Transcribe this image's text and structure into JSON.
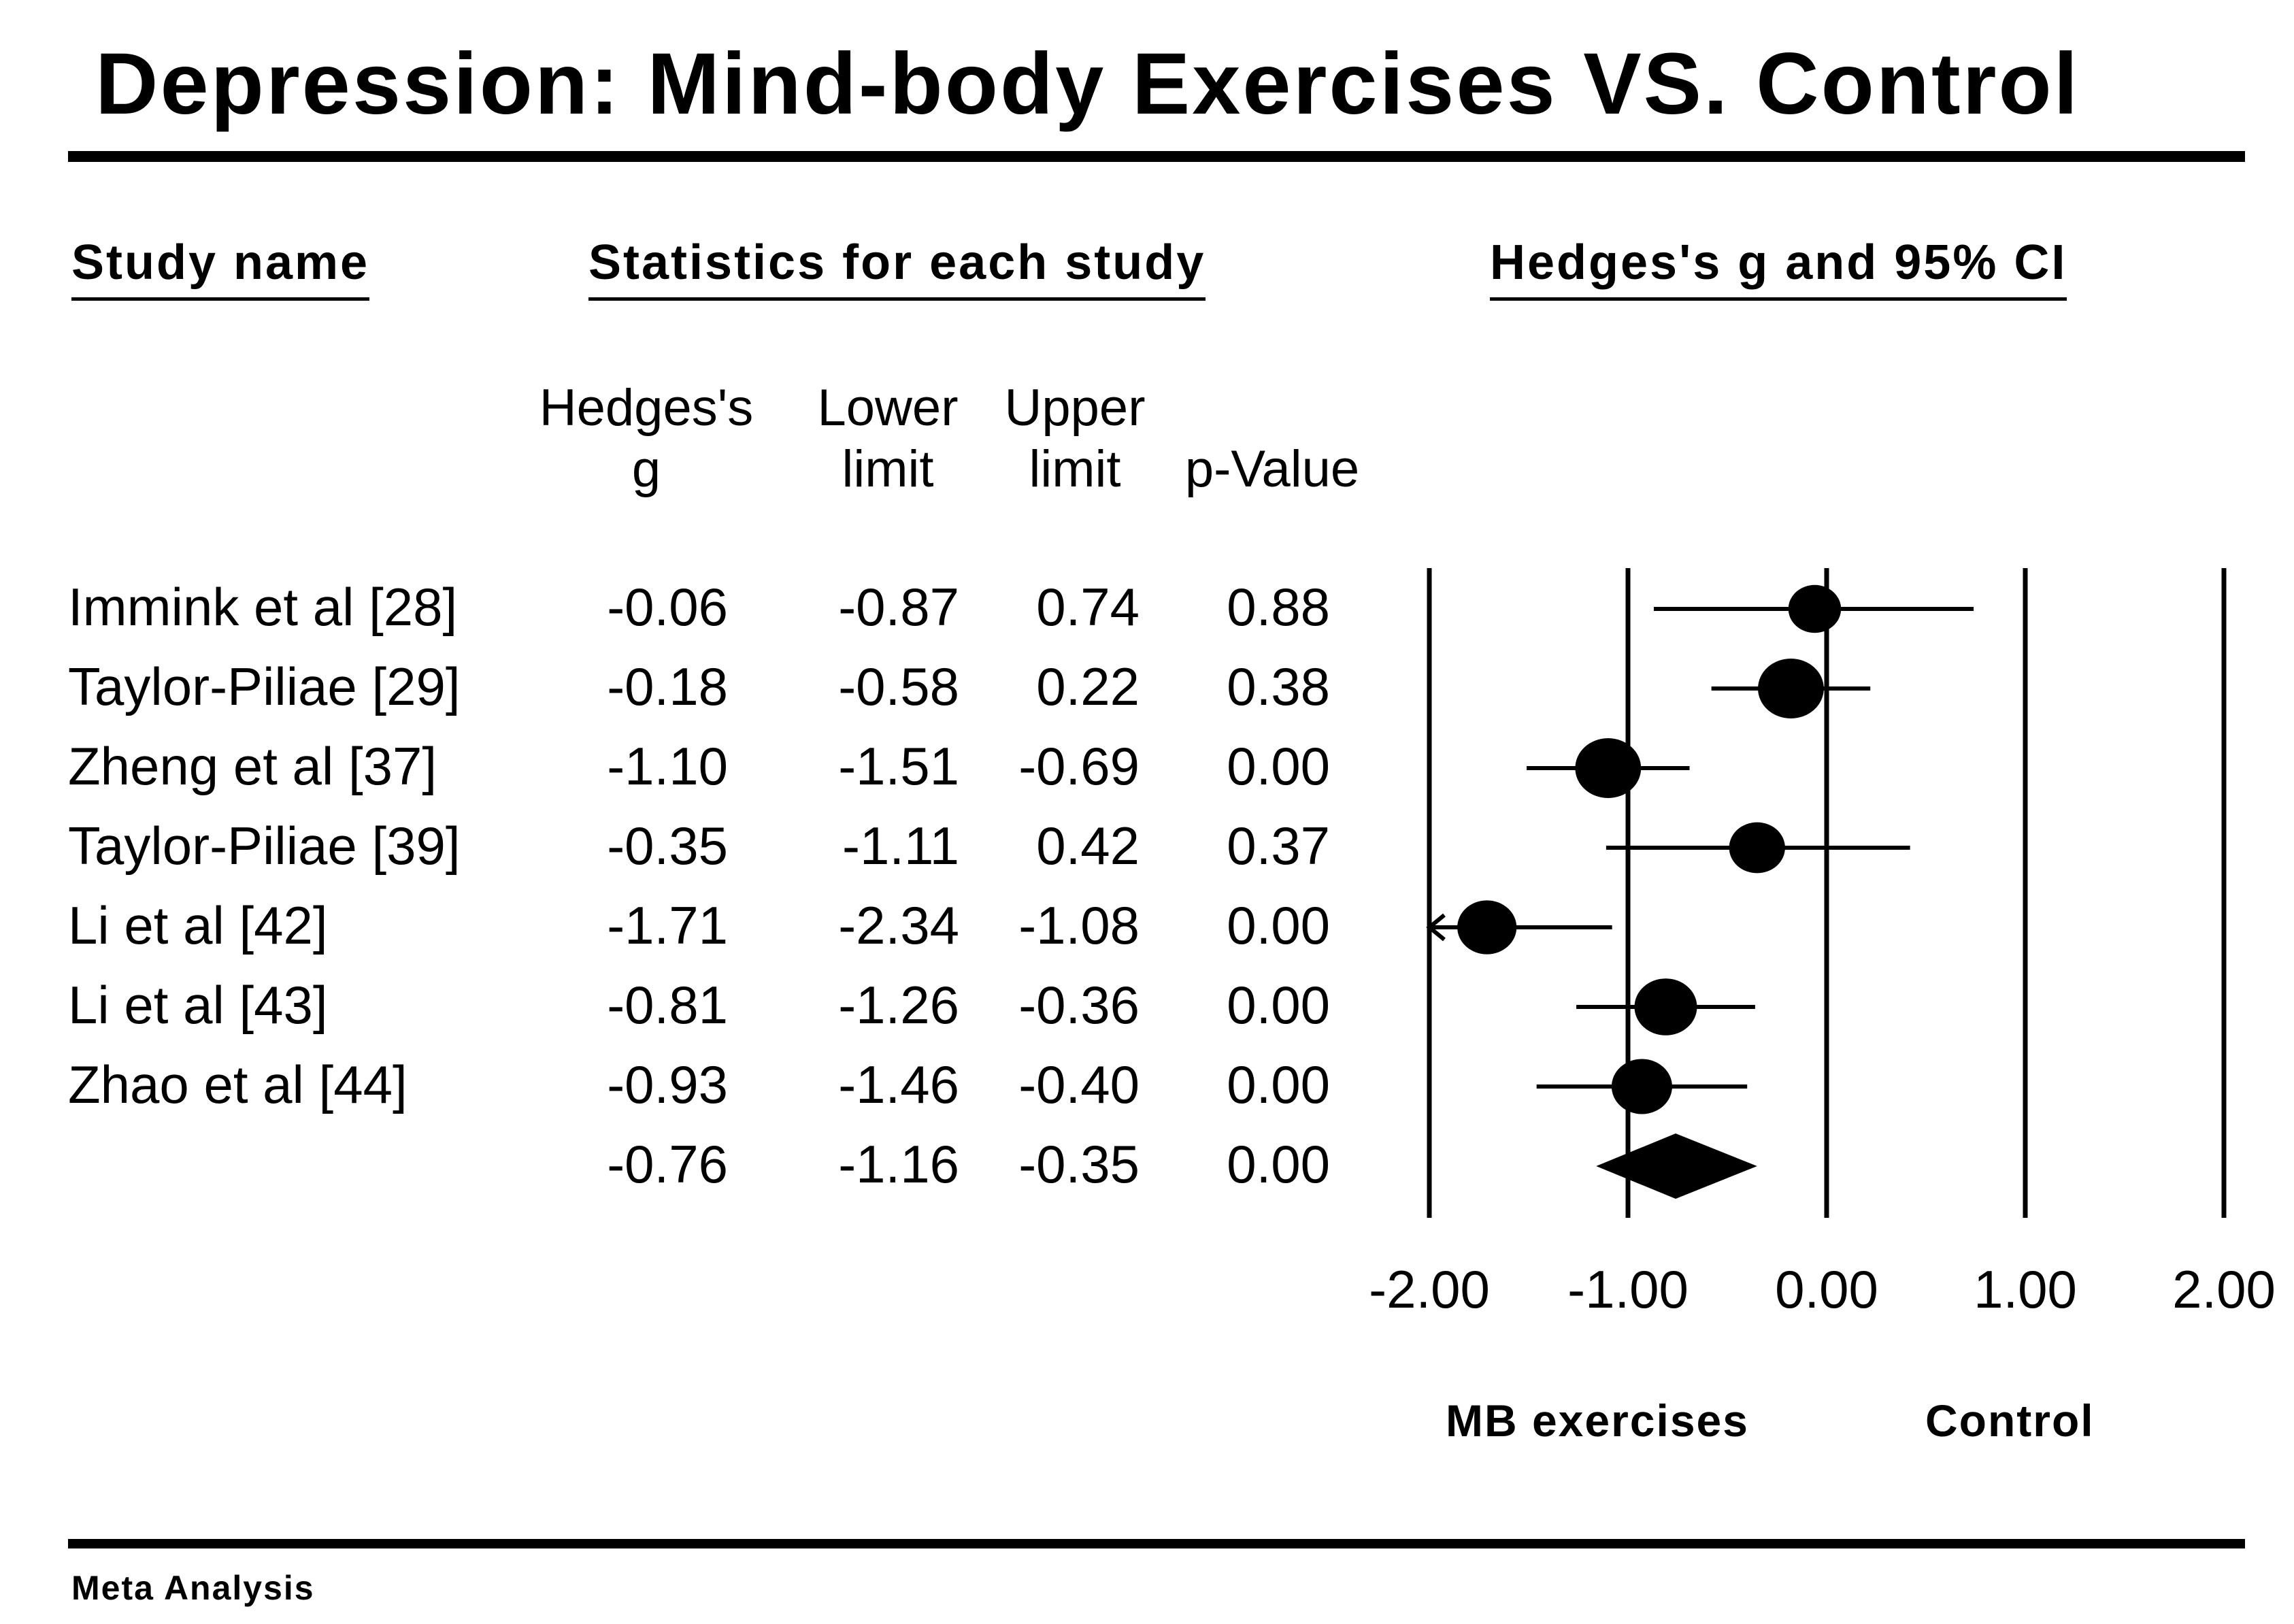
{
  "title": "Depression: Mind-body Exercises VS. Control",
  "headers": {
    "study_name": "Study name",
    "statistics": "Statistics for each study",
    "plot": "Hedges's g and 95% CI"
  },
  "columns": {
    "g": [
      "Hedges's",
      "g"
    ],
    "lower": [
      "Lower",
      "limit"
    ],
    "upper": [
      "Upper",
      "limit"
    ],
    "p": [
      "",
      "p-Value"
    ]
  },
  "footer": "Meta Analysis",
  "chart_data": {
    "type": "forest",
    "title": "Depression: Mind-body Exercises VS. Control",
    "xlabel_left": "MB exercises",
    "xlabel_right": "Control",
    "xlim": [
      -2,
      2
    ],
    "ticks": [
      -2,
      -1,
      0,
      1,
      2
    ],
    "tick_labels": [
      "-2.00",
      "-1.00",
      "0.00",
      "1.00",
      "2.00"
    ],
    "rows": [
      {
        "study": "Immink et al [28]",
        "g": "-0.06",
        "lower": "-0.87",
        "upper": "0.74",
        "p": "0.88",
        "g_val": -0.06,
        "lo_val": -0.87,
        "hi_val": 0.74,
        "weight": 0.8
      },
      {
        "study": "Taylor-Piliae [29]",
        "g": "-0.18",
        "lower": "-0.58",
        "upper": "0.22",
        "p": "0.38",
        "g_val": -0.18,
        "lo_val": -0.58,
        "hi_val": 0.22,
        "weight": 1.0
      },
      {
        "study": "Zheng et al [37]",
        "g": "-1.10",
        "lower": "-1.51",
        "upper": "-0.69",
        "p": "0.00",
        "g_val": -1.1,
        "lo_val": -1.51,
        "hi_val": -0.69,
        "weight": 1.0
      },
      {
        "study": "Taylor-Piliae [39]",
        "g": "-0.35",
        "lower": "-1.11",
        "upper": "0.42",
        "p": "0.37",
        "g_val": -0.35,
        "lo_val": -1.11,
        "hi_val": 0.42,
        "weight": 0.85
      },
      {
        "study": "Li et al [42]",
        "g": "-1.71",
        "lower": "-2.34",
        "upper": "-1.08",
        "p": "0.00",
        "g_val": -1.71,
        "lo_val": -2.34,
        "hi_val": -1.08,
        "weight": 0.9
      },
      {
        "study": "Li et al [43]",
        "g": "-0.81",
        "lower": "-1.26",
        "upper": "-0.36",
        "p": "0.00",
        "g_val": -0.81,
        "lo_val": -1.26,
        "hi_val": -0.36,
        "weight": 0.95
      },
      {
        "study": "Zhao et al [44]",
        "g": "-0.93",
        "lower": "-1.46",
        "upper": "-0.40",
        "p": "0.00",
        "g_val": -0.93,
        "lo_val": -1.46,
        "hi_val": -0.4,
        "weight": 0.92
      }
    ],
    "summary": {
      "study": "",
      "g": "-0.76",
      "lower": "-1.16",
      "upper": "-0.35",
      "p": "0.00",
      "g_val": -0.76,
      "lo_val": -1.16,
      "hi_val": -0.35
    }
  }
}
